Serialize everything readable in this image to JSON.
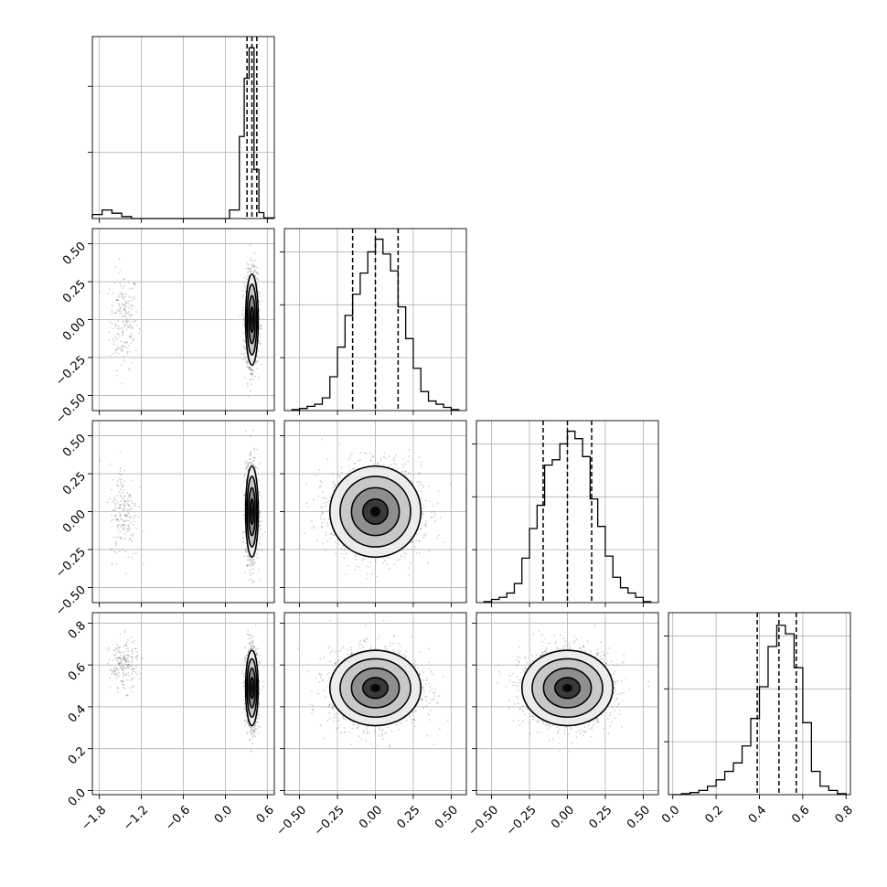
{
  "chart_data": {
    "type": "corner",
    "parameters": [
      "",
      "",
      "",
      ""
    ],
    "grid": true,
    "panels": {
      "diagonal": [
        {
          "param": 0,
          "xlim": [
            -1.9,
            0.7
          ],
          "bins": [
            -1.9,
            -1.76,
            -1.62,
            -1.48,
            -1.34,
            -1.2,
            -1.06,
            -0.92,
            -0.78,
            -0.64,
            -0.5,
            -0.36,
            -0.22,
            -0.08,
            0.06,
            0.2,
            0.27,
            0.34,
            0.41,
            0.48,
            0.55,
            0.7
          ],
          "counts": [
            0.6,
            1.3,
            0.8,
            0.3,
            0,
            0,
            0,
            0,
            0,
            0,
            0,
            0,
            0,
            0,
            1.3,
            12.4,
            21.2,
            25.8,
            7.4,
            0.9,
            0.1
          ],
          "quantiles": [
            0.31,
            0.38,
            0.45
          ],
          "ymax": 27.5,
          "yticks": [
            10,
            20
          ]
        },
        {
          "param": 1,
          "xlim": [
            -0.6,
            0.6
          ],
          "xticks": [
            -0.5,
            -0.25,
            0.0,
            0.25,
            0.5
          ],
          "xticklabels": [
            "-0.50",
            "-0.25",
            "0.00",
            "0.25",
            "0.50"
          ],
          "bins": [
            -0.55,
            -0.5,
            -0.45,
            -0.4,
            -0.35,
            -0.3,
            -0.25,
            -0.2,
            -0.15,
            -0.1,
            -0.05,
            0.0,
            0.05,
            0.1,
            0.15,
            0.2,
            0.25,
            0.3,
            0.35,
            0.4,
            0.45,
            0.5,
            0.55
          ],
          "counts": [
            1,
            2,
            4,
            6,
            12,
            32,
            60,
            90,
            110,
            130,
            150,
            162,
            148,
            132,
            98,
            68,
            40,
            18,
            9,
            6,
            3,
            1
          ],
          "quantiles": [
            -0.15,
            0.0,
            0.15
          ],
          "ymax": 172,
          "yticks": [
            50,
            100,
            150
          ]
        },
        {
          "param": 2,
          "xlim": [
            -0.6,
            0.6
          ],
          "bins": [
            -0.55,
            -0.5,
            -0.45,
            -0.4,
            -0.35,
            -0.3,
            -0.25,
            -0.2,
            -0.15,
            -0.1,
            -0.05,
            0.0,
            0.05,
            0.1,
            0.15,
            0.2,
            0.25,
            0.3,
            0.35,
            0.4,
            0.45,
            0.5,
            0.55
          ],
          "counts": [
            1,
            3,
            5,
            9,
            18,
            42,
            70,
            92,
            130,
            135,
            150,
            162,
            155,
            138,
            98,
            72,
            44,
            24,
            14,
            9,
            5,
            1
          ],
          "quantiles": [
            -0.16,
            0.0,
            0.16
          ],
          "ymax": 172,
          "yticks": [
            50,
            100,
            150
          ]
        },
        {
          "param": 3,
          "xlim": [
            -0.02,
            0.82
          ],
          "xticks": [
            0.0,
            0.2,
            0.4,
            0.6,
            0.8
          ],
          "xticklabels": [
            "0.0",
            "0.2",
            "0.4",
            "0.6",
            "0.8"
          ],
          "bins": [
            0.0,
            0.04,
            0.08,
            0.12,
            0.16,
            0.2,
            0.24,
            0.28,
            0.32,
            0.36,
            0.4,
            0.44,
            0.48,
            0.52,
            0.56,
            0.6,
            0.64,
            0.68,
            0.72,
            0.76,
            0.8
          ],
          "counts": [
            0,
            1,
            2,
            4,
            8,
            14,
            22,
            30,
            46,
            72,
            102,
            140,
            160,
            152,
            120,
            68,
            22,
            8,
            4,
            1
          ],
          "quantiles": [
            0.39,
            0.49,
            0.57
          ],
          "ymax": 172,
          "yticks": [
            50,
            100,
            150
          ]
        }
      ],
      "off_diagonal": [
        {
          "x_param": 0,
          "y_param": 1,
          "clusters": [
            {
              "x": -1.45,
              "y": 0.0,
              "sx": 0.1,
              "sy": 0.16,
              "n": 190
            },
            {
              "x": 0.38,
              "y": 0.0,
              "sx": 0.045,
              "sy": 0.15,
              "n": 1500
            }
          ]
        },
        {
          "x_param": 0,
          "y_param": 2,
          "clusters": [
            {
              "x": -1.45,
              "y": 0.0,
              "sx": 0.1,
              "sy": 0.16,
              "n": 190
            },
            {
              "x": 0.38,
              "y": 0.0,
              "sx": 0.045,
              "sy": 0.15,
              "n": 1500
            }
          ]
        },
        {
          "x_param": 0,
          "y_param": 3,
          "clusters": [
            {
              "x": -1.45,
              "y": 0.6,
              "sx": 0.1,
              "sy": 0.06,
              "n": 190
            },
            {
              "x": 0.38,
              "y": 0.49,
              "sx": 0.045,
              "sy": 0.09,
              "n": 1500
            }
          ]
        },
        {
          "x_param": 1,
          "y_param": 2,
          "clusters": [
            {
              "x": 0.0,
              "y": 0.0,
              "sx": 0.15,
              "sy": 0.15,
              "n": 1800
            }
          ]
        },
        {
          "x_param": 1,
          "y_param": 3,
          "clusters": [
            {
              "x": 0.0,
              "y": 0.49,
              "sx": 0.15,
              "sy": 0.09,
              "n": 1800
            }
          ]
        },
        {
          "x_param": 2,
          "y_param": 3,
          "clusters": [
            {
              "x": 0.0,
              "y": 0.49,
              "sx": 0.15,
              "sy": 0.09,
              "n": 1800
            }
          ]
        }
      ]
    },
    "axes": {
      "x": [
        {
          "param": 0,
          "lim": [
            -1.9,
            0.7
          ],
          "ticks": [
            -1.8,
            -1.2,
            -0.6,
            0.0,
            0.6
          ],
          "labels": [
            "-1.8",
            "-1.2",
            "-0.6",
            "0.0",
            "0.6"
          ]
        },
        {
          "param": 1,
          "lim": [
            -0.6,
            0.6
          ],
          "ticks": [
            -0.5,
            -0.25,
            0.0,
            0.25,
            0.5
          ],
          "labels": [
            "-0.50",
            "-0.25",
            "0.00",
            "0.25",
            "0.50"
          ]
        },
        {
          "param": 2,
          "lim": [
            -0.6,
            0.6
          ],
          "ticks": [
            -0.5,
            -0.25,
            0.0,
            0.25,
            0.5
          ],
          "labels": [
            "-0.50",
            "-0.25",
            "0.00",
            "0.25",
            "0.50"
          ]
        },
        {
          "param": 3,
          "lim": [
            -0.02,
            0.82
          ],
          "ticks": [
            0.0,
            0.2,
            0.4,
            0.6,
            0.8
          ],
          "labels": [
            "0.0",
            "0.2",
            "0.4",
            "0.6",
            "0.8"
          ]
        }
      ],
      "y": [
        null,
        {
          "param": 1,
          "lim": [
            -0.6,
            0.6
          ],
          "ticks": [
            -0.5,
            -0.25,
            0.0,
            0.25,
            0.5
          ],
          "labels": [
            "-0.50",
            "-0.25",
            "0.00",
            "0.25",
            "0.50"
          ]
        },
        {
          "param": 2,
          "lim": [
            -0.6,
            0.6
          ],
          "ticks": [
            -0.5,
            -0.25,
            0.0,
            0.25,
            0.5
          ],
          "labels": [
            "-0.50",
            "-0.25",
            "0.00",
            "0.25",
            "0.50"
          ]
        },
        {
          "param": 3,
          "lim": [
            -0.02,
            0.85
          ],
          "ticks": [
            0.0,
            0.2,
            0.4,
            0.6,
            0.8
          ],
          "labels": [
            "0.0",
            "0.2",
            "0.4",
            "0.6",
            "0.8"
          ]
        }
      ]
    }
  }
}
